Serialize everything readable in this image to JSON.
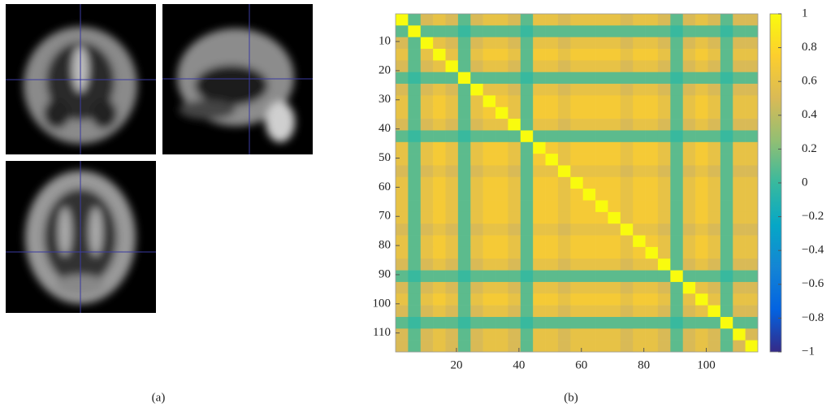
{
  "panel_a": {
    "caption": "(a)"
  },
  "chart_data": {
    "type": "heatmap",
    "caption": "(b)",
    "xlim": [
      0.5,
      116.5
    ],
    "ylim": [
      0.5,
      116.5
    ],
    "xticks": [
      20,
      40,
      60,
      80,
      100
    ],
    "yticks": [
      10,
      20,
      30,
      40,
      50,
      60,
      70,
      80,
      90,
      100,
      110
    ],
    "clim": [
      -1,
      1
    ],
    "cticks": [
      1,
      0.8,
      0.6,
      0.4,
      0.2,
      0,
      {
        "value": -0.2,
        "label": "−0.2"
      },
      {
        "value": -0.4,
        "label": "−0.4"
      },
      {
        "value": -0.6,
        "label": "−0.6"
      },
      {
        "value": -0.8,
        "label": "−0.8"
      },
      {
        "value": -1,
        "label": "−1"
      }
    ],
    "z": [
      [
        1,
        0.1,
        0.5,
        0.6,
        0.5,
        0.1,
        0.5,
        0.6,
        0.6,
        0.5,
        0.1,
        0.6,
        0.6,
        0.5,
        0.6,
        0.6,
        0.6,
        0.6,
        0.5,
        0.6,
        0.6,
        0.5,
        0.1,
        0.5,
        0.6,
        0.5,
        0.1,
        0.5,
        0.5
      ],
      [
        0.1,
        1,
        0.1,
        0.1,
        0.1,
        0.0,
        0.1,
        0.1,
        0.1,
        0.1,
        0.0,
        0.1,
        0.1,
        0.1,
        0.1,
        0.1,
        0.1,
        0.1,
        0.1,
        0.1,
        0.1,
        0.1,
        0.0,
        0.1,
        0.1,
        0.1,
        0.0,
        0.1,
        0.1
      ],
      [
        0.5,
        0.1,
        1,
        0.6,
        0.5,
        0.1,
        0.5,
        0.6,
        0.6,
        0.5,
        0.1,
        0.6,
        0.6,
        0.5,
        0.6,
        0.6,
        0.6,
        0.6,
        0.5,
        0.6,
        0.6,
        0.5,
        0.1,
        0.5,
        0.6,
        0.5,
        0.1,
        0.5,
        0.5
      ],
      [
        0.6,
        0.1,
        0.6,
        1,
        0.6,
        0.1,
        0.6,
        0.7,
        0.7,
        0.6,
        0.1,
        0.7,
        0.7,
        0.6,
        0.7,
        0.7,
        0.7,
        0.7,
        0.6,
        0.7,
        0.7,
        0.6,
        0.1,
        0.6,
        0.7,
        0.6,
        0.1,
        0.6,
        0.6
      ],
      [
        0.5,
        0.1,
        0.5,
        0.6,
        1,
        0.1,
        0.5,
        0.6,
        0.6,
        0.5,
        0.1,
        0.6,
        0.6,
        0.5,
        0.6,
        0.6,
        0.6,
        0.6,
        0.5,
        0.6,
        0.6,
        0.5,
        0.1,
        0.5,
        0.6,
        0.5,
        0.1,
        0.5,
        0.5
      ],
      [
        0.1,
        0.0,
        0.1,
        0.1,
        0.1,
        1,
        0.1,
        0.1,
        0.1,
        0.1,
        0.0,
        0.1,
        0.1,
        0.1,
        0.1,
        0.1,
        0.1,
        0.1,
        0.1,
        0.1,
        0.1,
        0.1,
        0.0,
        0.1,
        0.1,
        0.1,
        0.0,
        0.1,
        0.1
      ],
      [
        0.5,
        0.1,
        0.5,
        0.6,
        0.5,
        0.1,
        1,
        0.6,
        0.6,
        0.5,
        0.1,
        0.6,
        0.6,
        0.5,
        0.6,
        0.6,
        0.6,
        0.6,
        0.5,
        0.6,
        0.6,
        0.5,
        0.1,
        0.5,
        0.6,
        0.5,
        0.1,
        0.5,
        0.5
      ],
      [
        0.6,
        0.1,
        0.6,
        0.7,
        0.6,
        0.1,
        0.6,
        1,
        0.7,
        0.6,
        0.1,
        0.7,
        0.7,
        0.6,
        0.7,
        0.7,
        0.7,
        0.7,
        0.6,
        0.7,
        0.7,
        0.6,
        0.1,
        0.6,
        0.7,
        0.6,
        0.1,
        0.6,
        0.6
      ],
      [
        0.6,
        0.1,
        0.6,
        0.7,
        0.6,
        0.1,
        0.6,
        0.7,
        1,
        0.6,
        0.1,
        0.7,
        0.7,
        0.6,
        0.7,
        0.7,
        0.7,
        0.7,
        0.6,
        0.7,
        0.7,
        0.6,
        0.1,
        0.6,
        0.7,
        0.6,
        0.1,
        0.6,
        0.6
      ],
      [
        0.5,
        0.1,
        0.5,
        0.6,
        0.5,
        0.1,
        0.5,
        0.6,
        0.6,
        1,
        0.1,
        0.6,
        0.6,
        0.5,
        0.6,
        0.6,
        0.6,
        0.6,
        0.5,
        0.6,
        0.6,
        0.5,
        0.1,
        0.5,
        0.6,
        0.5,
        0.1,
        0.5,
        0.5
      ],
      [
        0.1,
        0.0,
        0.1,
        0.1,
        0.1,
        0.0,
        0.1,
        0.1,
        0.1,
        0.1,
        1,
        0.1,
        0.1,
        0.1,
        0.1,
        0.1,
        0.1,
        0.1,
        0.1,
        0.1,
        0.1,
        0.1,
        0.0,
        0.1,
        0.1,
        0.1,
        0.0,
        0.1,
        0.1
      ],
      [
        0.6,
        0.1,
        0.6,
        0.7,
        0.6,
        0.1,
        0.6,
        0.7,
        0.7,
        0.6,
        0.1,
        1,
        0.7,
        0.6,
        0.7,
        0.7,
        0.7,
        0.7,
        0.6,
        0.7,
        0.7,
        0.6,
        0.1,
        0.6,
        0.7,
        0.6,
        0.1,
        0.6,
        0.6
      ],
      [
        0.6,
        0.1,
        0.6,
        0.7,
        0.6,
        0.1,
        0.6,
        0.7,
        0.7,
        0.6,
        0.1,
        0.7,
        1,
        0.6,
        0.7,
        0.7,
        0.7,
        0.7,
        0.6,
        0.7,
        0.7,
        0.6,
        0.1,
        0.6,
        0.7,
        0.6,
        0.1,
        0.6,
        0.6
      ],
      [
        0.5,
        0.1,
        0.5,
        0.6,
        0.5,
        0.1,
        0.5,
        0.6,
        0.6,
        0.5,
        0.1,
        0.6,
        0.6,
        1,
        0.6,
        0.6,
        0.6,
        0.6,
        0.5,
        0.6,
        0.6,
        0.5,
        0.1,
        0.5,
        0.6,
        0.5,
        0.1,
        0.5,
        0.5
      ],
      [
        0.6,
        0.1,
        0.6,
        0.7,
        0.6,
        0.1,
        0.6,
        0.7,
        0.7,
        0.6,
        0.1,
        0.7,
        0.7,
        0.6,
        1,
        0.7,
        0.7,
        0.7,
        0.6,
        0.7,
        0.7,
        0.6,
        0.1,
        0.6,
        0.7,
        0.6,
        0.1,
        0.6,
        0.6
      ],
      [
        0.6,
        0.1,
        0.6,
        0.7,
        0.6,
        0.1,
        0.6,
        0.7,
        0.7,
        0.6,
        0.1,
        0.7,
        0.7,
        0.6,
        0.7,
        1,
        0.7,
        0.7,
        0.6,
        0.7,
        0.7,
        0.6,
        0.1,
        0.6,
        0.7,
        0.6,
        0.1,
        0.6,
        0.6
      ],
      [
        0.6,
        0.1,
        0.6,
        0.7,
        0.6,
        0.1,
        0.6,
        0.7,
        0.7,
        0.6,
        0.1,
        0.7,
        0.7,
        0.6,
        0.7,
        0.7,
        1,
        0.7,
        0.6,
        0.7,
        0.7,
        0.6,
        0.1,
        0.6,
        0.7,
        0.6,
        0.1,
        0.6,
        0.6
      ],
      [
        0.6,
        0.1,
        0.6,
        0.7,
        0.6,
        0.1,
        0.6,
        0.7,
        0.7,
        0.6,
        0.1,
        0.7,
        0.7,
        0.6,
        0.7,
        0.7,
        0.7,
        1,
        0.6,
        0.7,
        0.7,
        0.6,
        0.1,
        0.6,
        0.7,
        0.6,
        0.1,
        0.6,
        0.6
      ],
      [
        0.5,
        0.1,
        0.5,
        0.6,
        0.5,
        0.1,
        0.5,
        0.6,
        0.6,
        0.5,
        0.1,
        0.6,
        0.6,
        0.5,
        0.6,
        0.6,
        0.6,
        0.6,
        1,
        0.6,
        0.6,
        0.5,
        0.1,
        0.5,
        0.6,
        0.5,
        0.1,
        0.5,
        0.5
      ],
      [
        0.6,
        0.1,
        0.6,
        0.7,
        0.6,
        0.1,
        0.6,
        0.7,
        0.7,
        0.6,
        0.1,
        0.7,
        0.7,
        0.6,
        0.7,
        0.7,
        0.7,
        0.7,
        0.6,
        1,
        0.7,
        0.6,
        0.1,
        0.6,
        0.7,
        0.6,
        0.1,
        0.6,
        0.6
      ],
      [
        0.6,
        0.1,
        0.6,
        0.7,
        0.6,
        0.1,
        0.6,
        0.7,
        0.7,
        0.6,
        0.1,
        0.7,
        0.7,
        0.6,
        0.7,
        0.7,
        0.7,
        0.7,
        0.6,
        0.7,
        1,
        0.6,
        0.1,
        0.6,
        0.7,
        0.6,
        0.1,
        0.6,
        0.6
      ],
      [
        0.5,
        0.1,
        0.5,
        0.6,
        0.5,
        0.1,
        0.5,
        0.6,
        0.6,
        0.5,
        0.1,
        0.6,
        0.6,
        0.5,
        0.6,
        0.6,
        0.6,
        0.6,
        0.5,
        0.6,
        0.6,
        1,
        0.1,
        0.5,
        0.6,
        0.5,
        0.1,
        0.5,
        0.5
      ],
      [
        0.1,
        0.0,
        0.1,
        0.1,
        0.1,
        0.0,
        0.1,
        0.1,
        0.1,
        0.1,
        0.0,
        0.1,
        0.1,
        0.1,
        0.1,
        0.1,
        0.1,
        0.1,
        0.1,
        0.1,
        0.1,
        0.1,
        1,
        0.1,
        0.1,
        0.1,
        0.0,
        0.1,
        0.1
      ],
      [
        0.5,
        0.1,
        0.5,
        0.6,
        0.5,
        0.1,
        0.5,
        0.6,
        0.6,
        0.5,
        0.1,
        0.6,
        0.6,
        0.5,
        0.6,
        0.6,
        0.6,
        0.6,
        0.5,
        0.6,
        0.6,
        0.5,
        0.1,
        1,
        0.6,
        0.5,
        0.1,
        0.5,
        0.5
      ],
      [
        0.6,
        0.1,
        0.6,
        0.7,
        0.6,
        0.1,
        0.6,
        0.7,
        0.7,
        0.6,
        0.1,
        0.7,
        0.7,
        0.6,
        0.7,
        0.7,
        0.7,
        0.7,
        0.6,
        0.7,
        0.7,
        0.6,
        0.1,
        0.6,
        1,
        0.6,
        0.1,
        0.6,
        0.6
      ],
      [
        0.5,
        0.1,
        0.5,
        0.6,
        0.5,
        0.1,
        0.5,
        0.6,
        0.6,
        0.5,
        0.1,
        0.6,
        0.6,
        0.5,
        0.6,
        0.6,
        0.6,
        0.6,
        0.5,
        0.6,
        0.6,
        0.5,
        0.1,
        0.5,
        0.6,
        1,
        0.1,
        0.5,
        0.5
      ],
      [
        0.1,
        0.0,
        0.1,
        0.1,
        0.1,
        0.0,
        0.1,
        0.1,
        0.1,
        0.1,
        0.0,
        0.1,
        0.1,
        0.1,
        0.1,
        0.1,
        0.1,
        0.1,
        0.1,
        0.1,
        0.1,
        0.1,
        0.0,
        0.1,
        0.1,
        0.1,
        1,
        0.1,
        0.1
      ],
      [
        0.5,
        0.1,
        0.5,
        0.6,
        0.5,
        0.1,
        0.5,
        0.6,
        0.6,
        0.5,
        0.1,
        0.6,
        0.6,
        0.5,
        0.6,
        0.6,
        0.6,
        0.6,
        0.5,
        0.6,
        0.6,
        0.5,
        0.1,
        0.5,
        0.6,
        0.5,
        0.1,
        1,
        0.5
      ],
      [
        0.5,
        0.1,
        0.5,
        0.6,
        0.5,
        0.1,
        0.5,
        0.6,
        0.6,
        0.5,
        0.1,
        0.6,
        0.6,
        0.5,
        0.6,
        0.6,
        0.6,
        0.6,
        0.5,
        0.6,
        0.6,
        0.5,
        0.1,
        0.5,
        0.6,
        0.5,
        0.1,
        0.5,
        1
      ]
    ]
  }
}
